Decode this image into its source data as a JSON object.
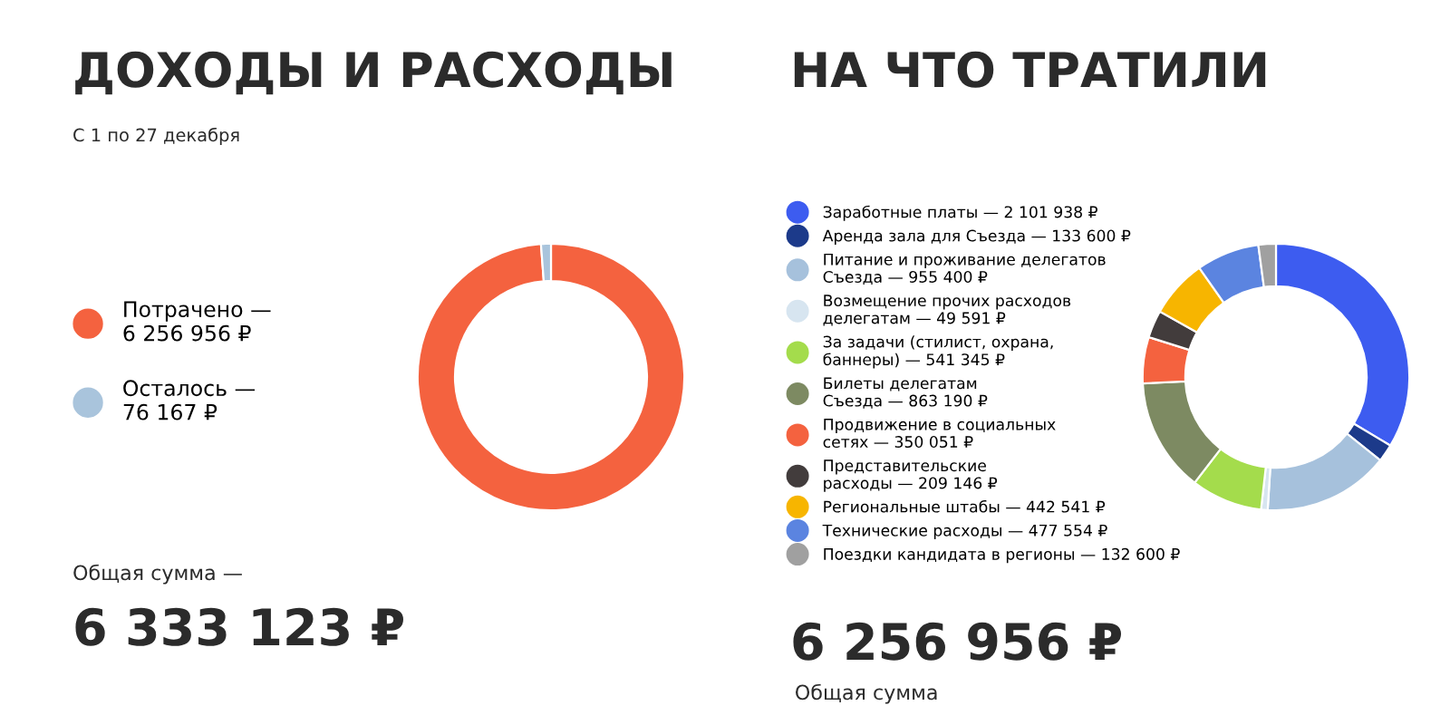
{
  "chart_data": [
    {
      "type": "donut",
      "title": "ДОХОДЫ И РАСХОДЫ",
      "subtitle": "С 1 по 27 декабря",
      "categories": [
        "Потрачено —\n6 256 956 ₽",
        "Осталось —\n76 167 ₽"
      ],
      "values": [
        6256956,
        76167
      ],
      "colors": [
        "#f4623f",
        "#a9c4dc"
      ],
      "legend": "left",
      "annotations": [
        "Общая сумма —",
        "6 333 123 ₽"
      ]
    },
    {
      "type": "donut",
      "title": "НА ЧТО ТРАТИЛИ",
      "categories": [
        "Заработные платы — 2 101 938 ₽",
        "Аренда зала для Съезда — 133 600 ₽",
        "Питание и проживание делегатов\nСъезда — 955 400 ₽",
        "Возмещение прочих расходов\nделегатам — 49 591 ₽",
        "За задачи (стилист, охрана,\nбаннеры) — 541 345 ₽",
        "Билеты делегатам\nСъезда — 863 190 ₽",
        "Продвижение в социальных\nсетях — 350 051 ₽",
        "Представительские\nрасходы — 209 146 ₽",
        "Региональные штабы — 442 541 ₽",
        "Технические расходы — 477 554 ₽",
        "Поездки кандидата в регионы — 132 600 ₽"
      ],
      "values": [
        2101938,
        133600,
        955400,
        49591,
        541345,
        863190,
        350051,
        209146,
        442541,
        477554,
        132600
      ],
      "colors": [
        "#3d5cf0",
        "#1c3a8a",
        "#a6c1dc",
        "#d7e5f0",
        "#a4dc4c",
        "#7d8a62",
        "#f4623f",
        "#423c3c",
        "#f7b500",
        "#5b84e0",
        "#a0a0a0"
      ],
      "legend": "left",
      "annotations": [
        "6 256 956 ₽",
        "Общая сумма"
      ]
    }
  ]
}
